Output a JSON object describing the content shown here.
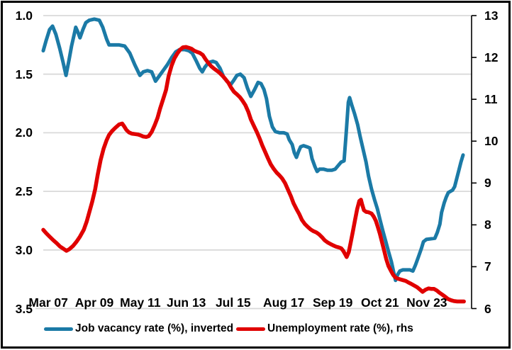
{
  "chart_data": {
    "type": "line",
    "title": "",
    "x_unit": "percent_of_plot_width",
    "x_tick_labels": [
      {
        "label": "Mar 07",
        "pct": 1.2
      },
      {
        "label": "Apr 09",
        "pct": 12.1
      },
      {
        "label": "May 11",
        "pct": 23.0
      },
      {
        "label": "Jun 13",
        "pct": 33.9
      },
      {
        "label": "Jul 15",
        "pct": 45.0
      },
      {
        "label": "Aug 17",
        "pct": 57.0
      },
      {
        "label": "Sep 19",
        "pct": 68.6
      },
      {
        "label": "Oct 21",
        "pct": 79.8
      },
      {
        "label": "Nov 23",
        "pct": 90.9
      }
    ],
    "left_axis": {
      "min": 1.0,
      "max": 3.5,
      "inverted_display": true,
      "tick_labels": [
        "1.0",
        "1.5",
        "2.0",
        "2.5",
        "3.0",
        "3.5"
      ],
      "tick_values": [
        1.0,
        1.5,
        2.0,
        2.5,
        3.0,
        3.5
      ]
    },
    "right_axis": {
      "min": 6,
      "max": 13,
      "tick_labels": [
        "13",
        "12",
        "11",
        "10",
        "9",
        "8",
        "7",
        "6"
      ],
      "tick_values": [
        13,
        12,
        11,
        10,
        9,
        8,
        7,
        6
      ]
    },
    "grid_color": "#D9D9D9",
    "spine_color": "#000000",
    "legend_position": "bottom",
    "series": [
      {
        "name": "Job vacancy rate (%), inverted",
        "axis": "left",
        "color": "#1B7AA6",
        "stroke_width": 5,
        "points": [
          [
            0,
            1.3
          ],
          [
            0.7,
            1.21
          ],
          [
            1.5,
            1.12
          ],
          [
            2.2,
            1.09
          ],
          [
            3.0,
            1.16
          ],
          [
            3.9,
            1.28
          ],
          [
            4.7,
            1.4
          ],
          [
            5.4,
            1.51
          ],
          [
            6.1,
            1.38
          ],
          [
            6.7,
            1.26
          ],
          [
            7.4,
            1.15
          ],
          [
            7.7,
            1.1
          ],
          [
            8.2,
            1.14
          ],
          [
            8.7,
            1.19
          ],
          [
            9.4,
            1.12
          ],
          [
            10.1,
            1.06
          ],
          [
            10.9,
            1.04
          ],
          [
            12.1,
            1.03
          ],
          [
            13.3,
            1.04
          ],
          [
            14.1,
            1.1
          ],
          [
            15.0,
            1.2
          ],
          [
            15.6,
            1.25
          ],
          [
            18.0,
            1.25
          ],
          [
            19.3,
            1.26
          ],
          [
            20.5,
            1.32
          ],
          [
            21.7,
            1.42
          ],
          [
            22.9,
            1.51
          ],
          [
            23.7,
            1.48
          ],
          [
            24.7,
            1.47
          ],
          [
            25.7,
            1.48
          ],
          [
            26.6,
            1.56
          ],
          [
            27.4,
            1.52
          ],
          [
            28.4,
            1.47
          ],
          [
            29.4,
            1.42
          ],
          [
            30.4,
            1.36
          ],
          [
            31.4,
            1.31
          ],
          [
            32.3,
            1.29
          ],
          [
            33.5,
            1.29
          ],
          [
            34.5,
            1.3
          ],
          [
            35.3,
            1.32
          ],
          [
            36.3,
            1.39
          ],
          [
            37.1,
            1.45
          ],
          [
            37.7,
            1.48
          ],
          [
            38.3,
            1.44
          ],
          [
            39.2,
            1.4
          ],
          [
            40.2,
            1.39
          ],
          [
            41.0,
            1.4
          ],
          [
            41.9,
            1.45
          ],
          [
            42.7,
            1.52
          ],
          [
            43.5,
            1.56
          ],
          [
            44.4,
            1.59
          ],
          [
            45.0,
            1.56
          ],
          [
            45.9,
            1.51
          ],
          [
            46.7,
            1.5
          ],
          [
            47.6,
            1.53
          ],
          [
            48.4,
            1.62
          ],
          [
            49.2,
            1.69
          ],
          [
            50.1,
            1.63
          ],
          [
            50.9,
            1.57
          ],
          [
            51.6,
            1.58
          ],
          [
            52.3,
            1.63
          ],
          [
            52.9,
            1.71
          ],
          [
            53.6,
            1.86
          ],
          [
            54.3,
            1.95
          ],
          [
            55.0,
            1.99
          ],
          [
            56.0,
            2.0
          ],
          [
            57.0,
            2.0
          ],
          [
            57.8,
            2.01
          ],
          [
            58.3,
            2.06
          ],
          [
            59.0,
            2.1
          ],
          [
            59.5,
            2.17
          ],
          [
            60.0,
            2.21
          ],
          [
            60.5,
            2.16
          ],
          [
            61.0,
            2.12
          ],
          [
            61.7,
            2.11
          ],
          [
            62.5,
            2.12
          ],
          [
            63.2,
            2.13
          ],
          [
            63.7,
            2.22
          ],
          [
            64.4,
            2.29
          ],
          [
            64.9,
            2.33
          ],
          [
            65.5,
            2.31
          ],
          [
            66.4,
            2.31
          ],
          [
            67.4,
            2.32
          ],
          [
            68.4,
            2.32
          ],
          [
            69.2,
            2.31
          ],
          [
            69.9,
            2.28
          ],
          [
            70.6,
            2.25
          ],
          [
            71.3,
            2.24
          ],
          [
            71.8,
            2.0
          ],
          [
            72.3,
            1.74
          ],
          [
            72.6,
            1.7
          ],
          [
            73.1,
            1.76
          ],
          [
            73.8,
            1.84
          ],
          [
            74.5,
            1.93
          ],
          [
            75.1,
            2.03
          ],
          [
            75.8,
            2.14
          ],
          [
            76.5,
            2.25
          ],
          [
            77.1,
            2.37
          ],
          [
            77.8,
            2.48
          ],
          [
            78.5,
            2.57
          ],
          [
            79.2,
            2.65
          ],
          [
            79.8,
            2.74
          ],
          [
            80.5,
            2.84
          ],
          [
            81.2,
            2.93
          ],
          [
            81.8,
            3.01
          ],
          [
            82.5,
            3.1
          ],
          [
            83.0,
            3.18
          ],
          [
            83.5,
            3.26
          ],
          [
            84.0,
            3.21
          ],
          [
            84.5,
            3.18
          ],
          [
            85.2,
            3.17
          ],
          [
            86.9,
            3.17
          ],
          [
            87.6,
            3.18
          ],
          [
            88.2,
            3.13
          ],
          [
            88.9,
            3.06
          ],
          [
            89.6,
            2.99
          ],
          [
            90.1,
            2.93
          ],
          [
            90.8,
            2.91
          ],
          [
            92.8,
            2.9
          ],
          [
            93.4,
            2.85
          ],
          [
            94.0,
            2.78
          ],
          [
            94.4,
            2.68
          ],
          [
            95.0,
            2.6
          ],
          [
            95.5,
            2.55
          ],
          [
            96.0,
            2.51
          ],
          [
            96.5,
            2.5
          ],
          [
            97.0,
            2.49
          ],
          [
            97.5,
            2.46
          ],
          [
            98.0,
            2.39
          ],
          [
            98.5,
            2.32
          ],
          [
            99.0,
            2.25
          ],
          [
            99.5,
            2.19
          ]
        ]
      },
      {
        "name": "Unemployment rate (%), rhs",
        "axis": "right",
        "color": "#E00000",
        "stroke_width": 5.5,
        "points": [
          [
            0,
            7.88
          ],
          [
            0.7,
            7.8
          ],
          [
            1.5,
            7.72
          ],
          [
            2.4,
            7.63
          ],
          [
            3.2,
            7.56
          ],
          [
            4.0,
            7.48
          ],
          [
            4.9,
            7.42
          ],
          [
            5.5,
            7.38
          ],
          [
            6.2,
            7.42
          ],
          [
            7.1,
            7.5
          ],
          [
            7.9,
            7.6
          ],
          [
            8.7,
            7.72
          ],
          [
            9.6,
            7.88
          ],
          [
            10.3,
            8.08
          ],
          [
            10.9,
            8.3
          ],
          [
            11.6,
            8.55
          ],
          [
            12.3,
            8.85
          ],
          [
            12.9,
            9.2
          ],
          [
            13.6,
            9.55
          ],
          [
            14.3,
            9.82
          ],
          [
            15.0,
            10.02
          ],
          [
            15.6,
            10.15
          ],
          [
            16.3,
            10.24
          ],
          [
            17.1,
            10.32
          ],
          [
            18.0,
            10.4
          ],
          [
            18.7,
            10.42
          ],
          [
            19.2,
            10.35
          ],
          [
            19.7,
            10.27
          ],
          [
            20.3,
            10.21
          ],
          [
            21.0,
            10.18
          ],
          [
            21.7,
            10.17
          ],
          [
            22.4,
            10.16
          ],
          [
            23.0,
            10.14
          ],
          [
            23.7,
            10.11
          ],
          [
            24.4,
            10.1
          ],
          [
            25.0,
            10.12
          ],
          [
            25.7,
            10.22
          ],
          [
            26.4,
            10.38
          ],
          [
            27.1,
            10.56
          ],
          [
            27.7,
            10.78
          ],
          [
            28.4,
            11.0
          ],
          [
            29.1,
            11.22
          ],
          [
            29.7,
            11.55
          ],
          [
            30.4,
            11.8
          ],
          [
            31.1,
            11.98
          ],
          [
            31.8,
            12.1
          ],
          [
            32.4,
            12.18
          ],
          [
            33.1,
            12.24
          ],
          [
            33.8,
            12.25
          ],
          [
            34.5,
            12.23
          ],
          [
            35.1,
            12.21
          ],
          [
            35.8,
            12.16
          ],
          [
            36.5,
            12.13
          ],
          [
            37.1,
            12.11
          ],
          [
            37.8,
            12.06
          ],
          [
            38.5,
            11.95
          ],
          [
            39.2,
            11.86
          ],
          [
            39.8,
            11.79
          ],
          [
            40.5,
            11.73
          ],
          [
            41.2,
            11.68
          ],
          [
            41.8,
            11.63
          ],
          [
            42.5,
            11.56
          ],
          [
            43.2,
            11.48
          ],
          [
            43.9,
            11.39
          ],
          [
            44.5,
            11.28
          ],
          [
            45.2,
            11.18
          ],
          [
            45.9,
            11.12
          ],
          [
            46.6,
            11.05
          ],
          [
            47.2,
            10.97
          ],
          [
            47.9,
            10.86
          ],
          [
            48.6,
            10.7
          ],
          [
            49.2,
            10.52
          ],
          [
            49.9,
            10.37
          ],
          [
            50.6,
            10.22
          ],
          [
            51.3,
            10.06
          ],
          [
            51.9,
            9.9
          ],
          [
            52.6,
            9.74
          ],
          [
            53.3,
            9.58
          ],
          [
            53.9,
            9.45
          ],
          [
            54.6,
            9.34
          ],
          [
            55.3,
            9.25
          ],
          [
            56.0,
            9.18
          ],
          [
            56.6,
            9.11
          ],
          [
            57.3,
            9.0
          ],
          [
            58.0,
            8.84
          ],
          [
            58.7,
            8.68
          ],
          [
            59.3,
            8.52
          ],
          [
            60.0,
            8.38
          ],
          [
            60.7,
            8.25
          ],
          [
            61.3,
            8.12
          ],
          [
            62.0,
            8.02
          ],
          [
            62.7,
            7.95
          ],
          [
            63.4,
            7.89
          ],
          [
            64.0,
            7.85
          ],
          [
            64.7,
            7.82
          ],
          [
            65.4,
            7.77
          ],
          [
            66.1,
            7.7
          ],
          [
            66.7,
            7.63
          ],
          [
            67.4,
            7.58
          ],
          [
            68.1,
            7.54
          ],
          [
            68.7,
            7.51
          ],
          [
            69.4,
            7.48
          ],
          [
            70.1,
            7.46
          ],
          [
            70.6,
            7.44
          ],
          [
            71.1,
            7.38
          ],
          [
            71.6,
            7.29
          ],
          [
            71.9,
            7.23
          ],
          [
            72.4,
            7.35
          ],
          [
            72.9,
            7.6
          ],
          [
            73.4,
            7.85
          ],
          [
            73.9,
            8.12
          ],
          [
            74.4,
            8.38
          ],
          [
            74.9,
            8.57
          ],
          [
            75.3,
            8.6
          ],
          [
            75.6,
            8.48
          ],
          [
            76.0,
            8.35
          ],
          [
            76.5,
            8.31
          ],
          [
            77.1,
            8.3
          ],
          [
            77.8,
            8.27
          ],
          [
            78.3,
            8.2
          ],
          [
            78.8,
            8.1
          ],
          [
            79.3,
            7.95
          ],
          [
            79.8,
            7.78
          ],
          [
            80.3,
            7.58
          ],
          [
            80.8,
            7.38
          ],
          [
            81.3,
            7.18
          ],
          [
            81.8,
            7.02
          ],
          [
            82.4,
            6.9
          ],
          [
            82.9,
            6.81
          ],
          [
            83.4,
            6.75
          ],
          [
            83.9,
            6.72
          ],
          [
            84.5,
            6.7
          ],
          [
            85.2,
            6.68
          ],
          [
            85.9,
            6.66
          ],
          [
            86.6,
            6.62
          ],
          [
            87.2,
            6.59
          ],
          [
            87.9,
            6.55
          ],
          [
            88.6,
            6.51
          ],
          [
            89.2,
            6.46
          ],
          [
            89.9,
            6.4
          ],
          [
            90.6,
            6.45
          ],
          [
            91.3,
            6.48
          ],
          [
            91.9,
            6.47
          ],
          [
            92.6,
            6.47
          ],
          [
            93.3,
            6.43
          ],
          [
            93.9,
            6.38
          ],
          [
            94.6,
            6.33
          ],
          [
            95.3,
            6.28
          ],
          [
            95.9,
            6.23
          ],
          [
            96.6,
            6.2
          ],
          [
            97.3,
            6.18
          ],
          [
            98.1,
            6.17
          ],
          [
            99.0,
            6.17
          ],
          [
            99.7,
            6.17
          ]
        ]
      }
    ]
  }
}
